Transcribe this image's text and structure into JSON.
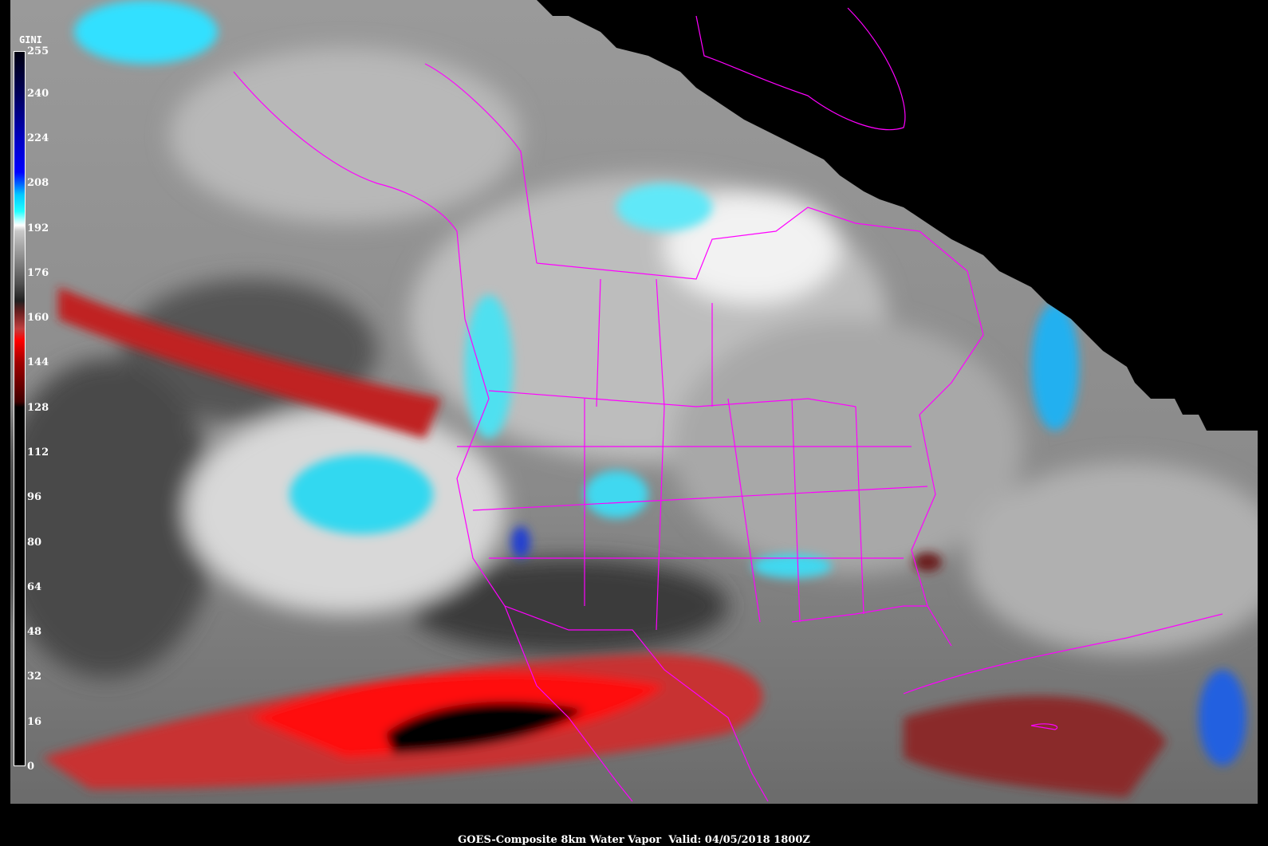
{
  "colorbar": {
    "title": "GINI",
    "ticks": [
      "255",
      "240",
      "224",
      "208",
      "192",
      "176",
      "160",
      "144",
      "128",
      "112",
      "96",
      "80",
      "64",
      "48",
      "32",
      "16",
      "0"
    ],
    "tick_values": [
      255,
      240,
      224,
      208,
      192,
      176,
      160,
      144,
      128,
      112,
      96,
      80,
      64,
      48,
      32,
      16,
      0
    ],
    "min": 0,
    "max": 255
  },
  "caption": {
    "product": "GOES-Composite 8km Water Vapor",
    "valid": "Valid: 04/05/2018 1800Z"
  },
  "colors": {
    "borders": "#ff00ff",
    "dry": "#e01010",
    "moist": "#00e8ff",
    "background": "#000000"
  }
}
